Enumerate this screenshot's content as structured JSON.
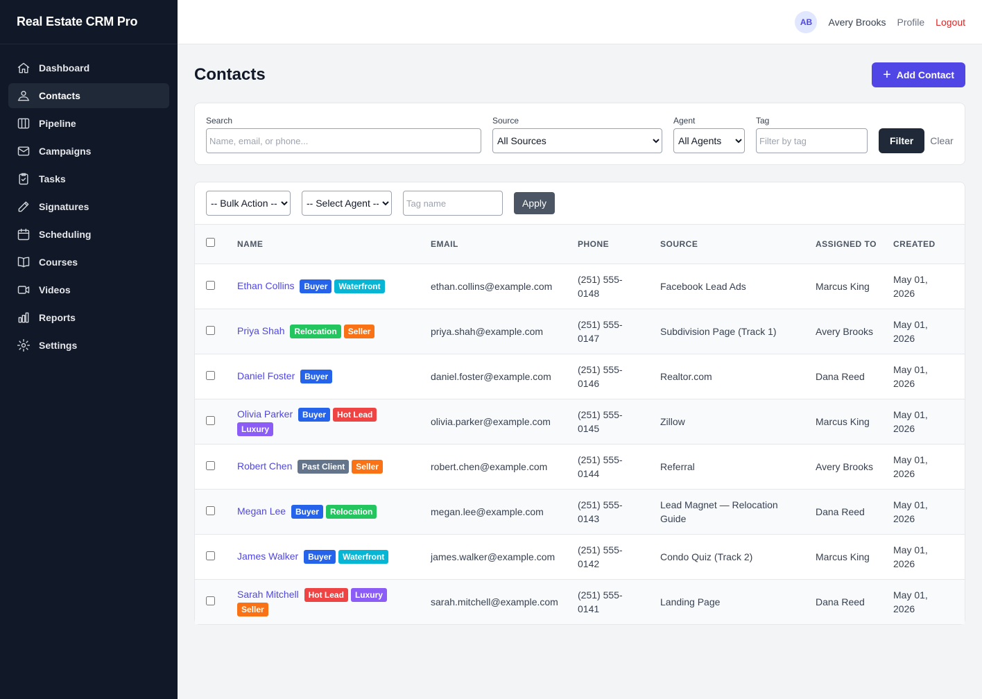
{
  "app": {
    "title": "Real Estate CRM Pro"
  },
  "sidebar": {
    "items": [
      {
        "label": "Dashboard",
        "icon": "home-icon",
        "active": false
      },
      {
        "label": "Contacts",
        "icon": "users-icon",
        "active": true
      },
      {
        "label": "Pipeline",
        "icon": "columns-icon",
        "active": false
      },
      {
        "label": "Campaigns",
        "icon": "mail-icon",
        "active": false
      },
      {
        "label": "Tasks",
        "icon": "clipboard-check-icon",
        "active": false
      },
      {
        "label": "Signatures",
        "icon": "pen-icon",
        "active": false
      },
      {
        "label": "Scheduling",
        "icon": "calendar-icon",
        "active": false
      },
      {
        "label": "Courses",
        "icon": "book-icon",
        "active": false
      },
      {
        "label": "Videos",
        "icon": "video-icon",
        "active": false
      },
      {
        "label": "Reports",
        "icon": "bar-chart-icon",
        "active": false
      },
      {
        "label": "Settings",
        "icon": "gear-icon",
        "active": false
      }
    ]
  },
  "topbar": {
    "avatar": "AB",
    "user_name": "Avery Brooks",
    "profile": "Profile",
    "logout": "Logout"
  },
  "page": {
    "title": "Contacts",
    "add_button": "Add Contact"
  },
  "filters": {
    "search_label": "Search",
    "search_placeholder": "Name, email, or phone...",
    "source_label": "Source",
    "source_value": "All Sources",
    "agent_label": "Agent",
    "agent_value": "All Agents",
    "tag_label": "Tag",
    "tag_placeholder": "Filter by tag",
    "filter_button": "Filter",
    "clear": "Clear"
  },
  "bulk": {
    "action_value": "-- Bulk Action --",
    "agent_value": "-- Select Agent --",
    "tag_placeholder": "Tag name",
    "apply": "Apply"
  },
  "table": {
    "headers": [
      "Name",
      "Email",
      "Phone",
      "Source",
      "Assigned To",
      "Created"
    ],
    "rows": [
      {
        "name": "Ethan Collins",
        "tags": [
          {
            "label": "Buyer",
            "color": "#2563eb"
          },
          {
            "label": "Waterfront",
            "color": "#06b6d4"
          }
        ],
        "email": "ethan.collins@example.com",
        "phone": "(251) 555-0148",
        "source": "Facebook Lead Ads",
        "assigned": "Marcus King",
        "created": "May 01, 2026"
      },
      {
        "name": "Priya Shah",
        "tags": [
          {
            "label": "Relocation",
            "color": "#22c55e"
          },
          {
            "label": "Seller",
            "color": "#f97316"
          }
        ],
        "email": "priya.shah@example.com",
        "phone": "(251) 555-0147",
        "source": "Subdivision Page (Track 1)",
        "assigned": "Avery Brooks",
        "created": "May 01, 2026"
      },
      {
        "name": "Daniel Foster",
        "tags": [
          {
            "label": "Buyer",
            "color": "#2563eb"
          }
        ],
        "email": "daniel.foster@example.com",
        "phone": "(251) 555-0146",
        "source": "Realtor.com",
        "assigned": "Dana Reed",
        "created": "May 01, 2026"
      },
      {
        "name": "Olivia Parker",
        "tags": [
          {
            "label": "Buyer",
            "color": "#2563eb"
          },
          {
            "label": "Hot Lead",
            "color": "#ef4444"
          },
          {
            "label": "Luxury",
            "color": "#8b5cf6"
          }
        ],
        "email": "olivia.parker@example.com",
        "phone": "(251) 555-0145",
        "source": "Zillow",
        "assigned": "Marcus King",
        "created": "May 01, 2026"
      },
      {
        "name": "Robert Chen",
        "tags": [
          {
            "label": "Past Client",
            "color": "#64748b"
          },
          {
            "label": "Seller",
            "color": "#f97316"
          }
        ],
        "email": "robert.chen@example.com",
        "phone": "(251) 555-0144",
        "source": "Referral",
        "assigned": "Avery Brooks",
        "created": "May 01, 2026"
      },
      {
        "name": "Megan Lee",
        "tags": [
          {
            "label": "Buyer",
            "color": "#2563eb"
          },
          {
            "label": "Relocation",
            "color": "#22c55e"
          }
        ],
        "email": "megan.lee@example.com",
        "phone": "(251) 555-0143",
        "source": "Lead Magnet — Relocation Guide",
        "assigned": "Dana Reed",
        "created": "May 01, 2026"
      },
      {
        "name": "James Walker",
        "tags": [
          {
            "label": "Buyer",
            "color": "#2563eb"
          },
          {
            "label": "Waterfront",
            "color": "#06b6d4"
          }
        ],
        "email": "james.walker@example.com",
        "phone": "(251) 555-0142",
        "source": "Condo Quiz (Track 2)",
        "assigned": "Marcus King",
        "created": "May 01, 2026"
      },
      {
        "name": "Sarah Mitchell",
        "tags": [
          {
            "label": "Hot Lead",
            "color": "#ef4444"
          },
          {
            "label": "Luxury",
            "color": "#8b5cf6"
          },
          {
            "label": "Seller",
            "color": "#f97316"
          }
        ],
        "email": "sarah.mitchell@example.com",
        "phone": "(251) 555-0141",
        "source": "Landing Page",
        "assigned": "Dana Reed",
        "created": "May 01, 2026"
      }
    ]
  }
}
